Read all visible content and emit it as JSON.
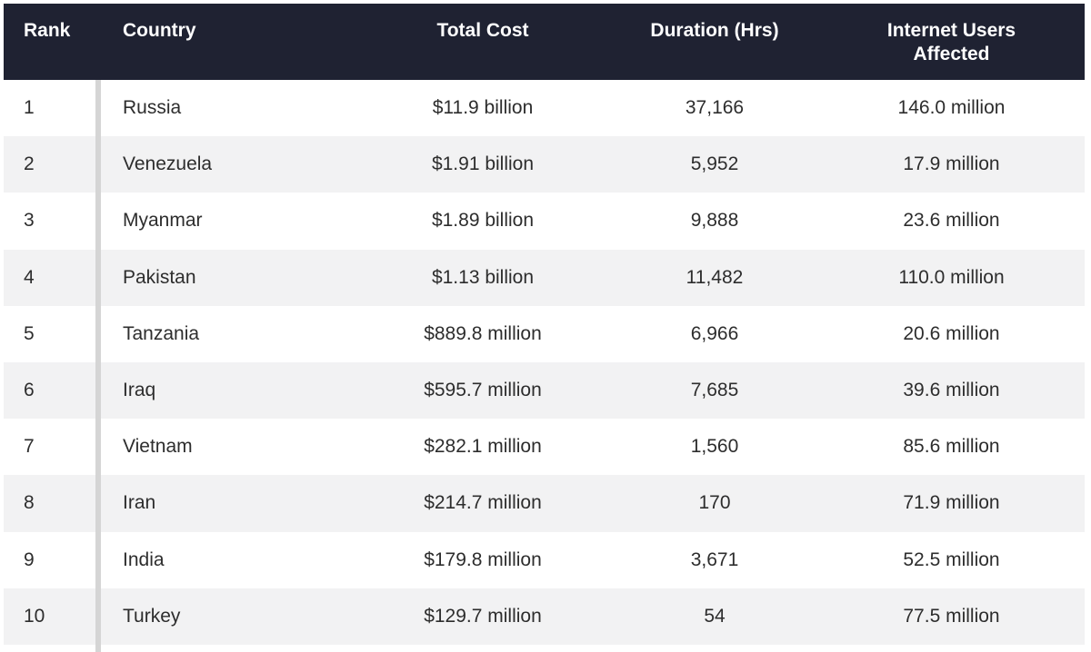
{
  "colors": {
    "header_bg": "#1f2232",
    "header_text": "#ffffff",
    "body_text": "#2d2d2d",
    "row_bg": "#ffffff",
    "row_alt_bg": "#f2f2f3",
    "divider": "#d5d5d5"
  },
  "chart_data": {
    "type": "table",
    "columns": [
      "Rank",
      "Country",
      "Total Cost",
      "Duration (Hrs)",
      "Internet Users Affected"
    ],
    "rows": [
      [
        "1",
        "Russia",
        "$11.9 billion",
        "37,166",
        "146.0 million"
      ],
      [
        "2",
        "Venezuela",
        "$1.91 billion",
        "5,952",
        "17.9 million"
      ],
      [
        "3",
        "Myanmar",
        "$1.89 billion",
        "9,888",
        "23.6 million"
      ],
      [
        "4",
        "Pakistan",
        "$1.13 billion",
        "11,482",
        "110.0 million"
      ],
      [
        "5",
        "Tanzania",
        "$889.8 million",
        "6,966",
        "20.6 million"
      ],
      [
        "6",
        "Iraq",
        "$595.7 million",
        "7,685",
        "39.6 million"
      ],
      [
        "7",
        "Vietnam",
        "$282.1 million",
        "1,560",
        "85.6 million"
      ],
      [
        "8",
        "Iran",
        "$214.7 million",
        "170",
        "71.9 million"
      ],
      [
        "9",
        "India",
        "$179.8 million",
        "3,671",
        "52.5 million"
      ],
      [
        "10",
        "Turkey",
        "$129.7 million",
        "54",
        "77.5 million"
      ]
    ]
  }
}
